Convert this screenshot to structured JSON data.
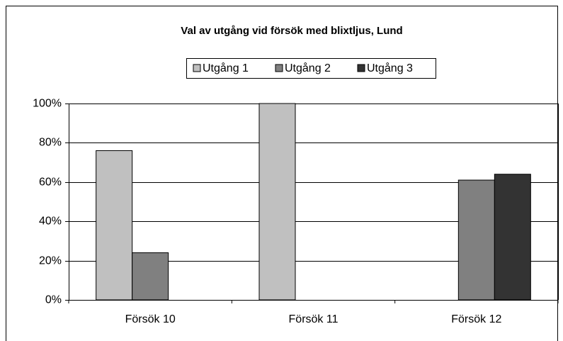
{
  "chart_data": {
    "type": "bar",
    "title": "Val av utgång vid försök med blixtljus, Lund",
    "categories": [
      "Försök 10",
      "Försök 11",
      "Försök 12"
    ],
    "series": [
      {
        "name": "Utgång 1",
        "color": "#c0c0c0",
        "values": [
          76,
          100,
          0
        ]
      },
      {
        "name": "Utgång 2",
        "color": "#808080",
        "values": [
          24,
          0,
          61
        ]
      },
      {
        "name": "Utgång 3",
        "color": "#333333",
        "values": [
          0,
          0,
          64
        ]
      }
    ],
    "ylim": [
      0,
      100
    ],
    "yticks": [
      {
        "value": 0,
        "label": "0%"
      },
      {
        "value": 20,
        "label": "20%"
      },
      {
        "value": 40,
        "label": "40%"
      },
      {
        "value": 60,
        "label": "60%"
      },
      {
        "value": 80,
        "label": "80%"
      },
      {
        "value": 100,
        "label": "100%"
      }
    ],
    "grid": true,
    "legend": "top"
  }
}
